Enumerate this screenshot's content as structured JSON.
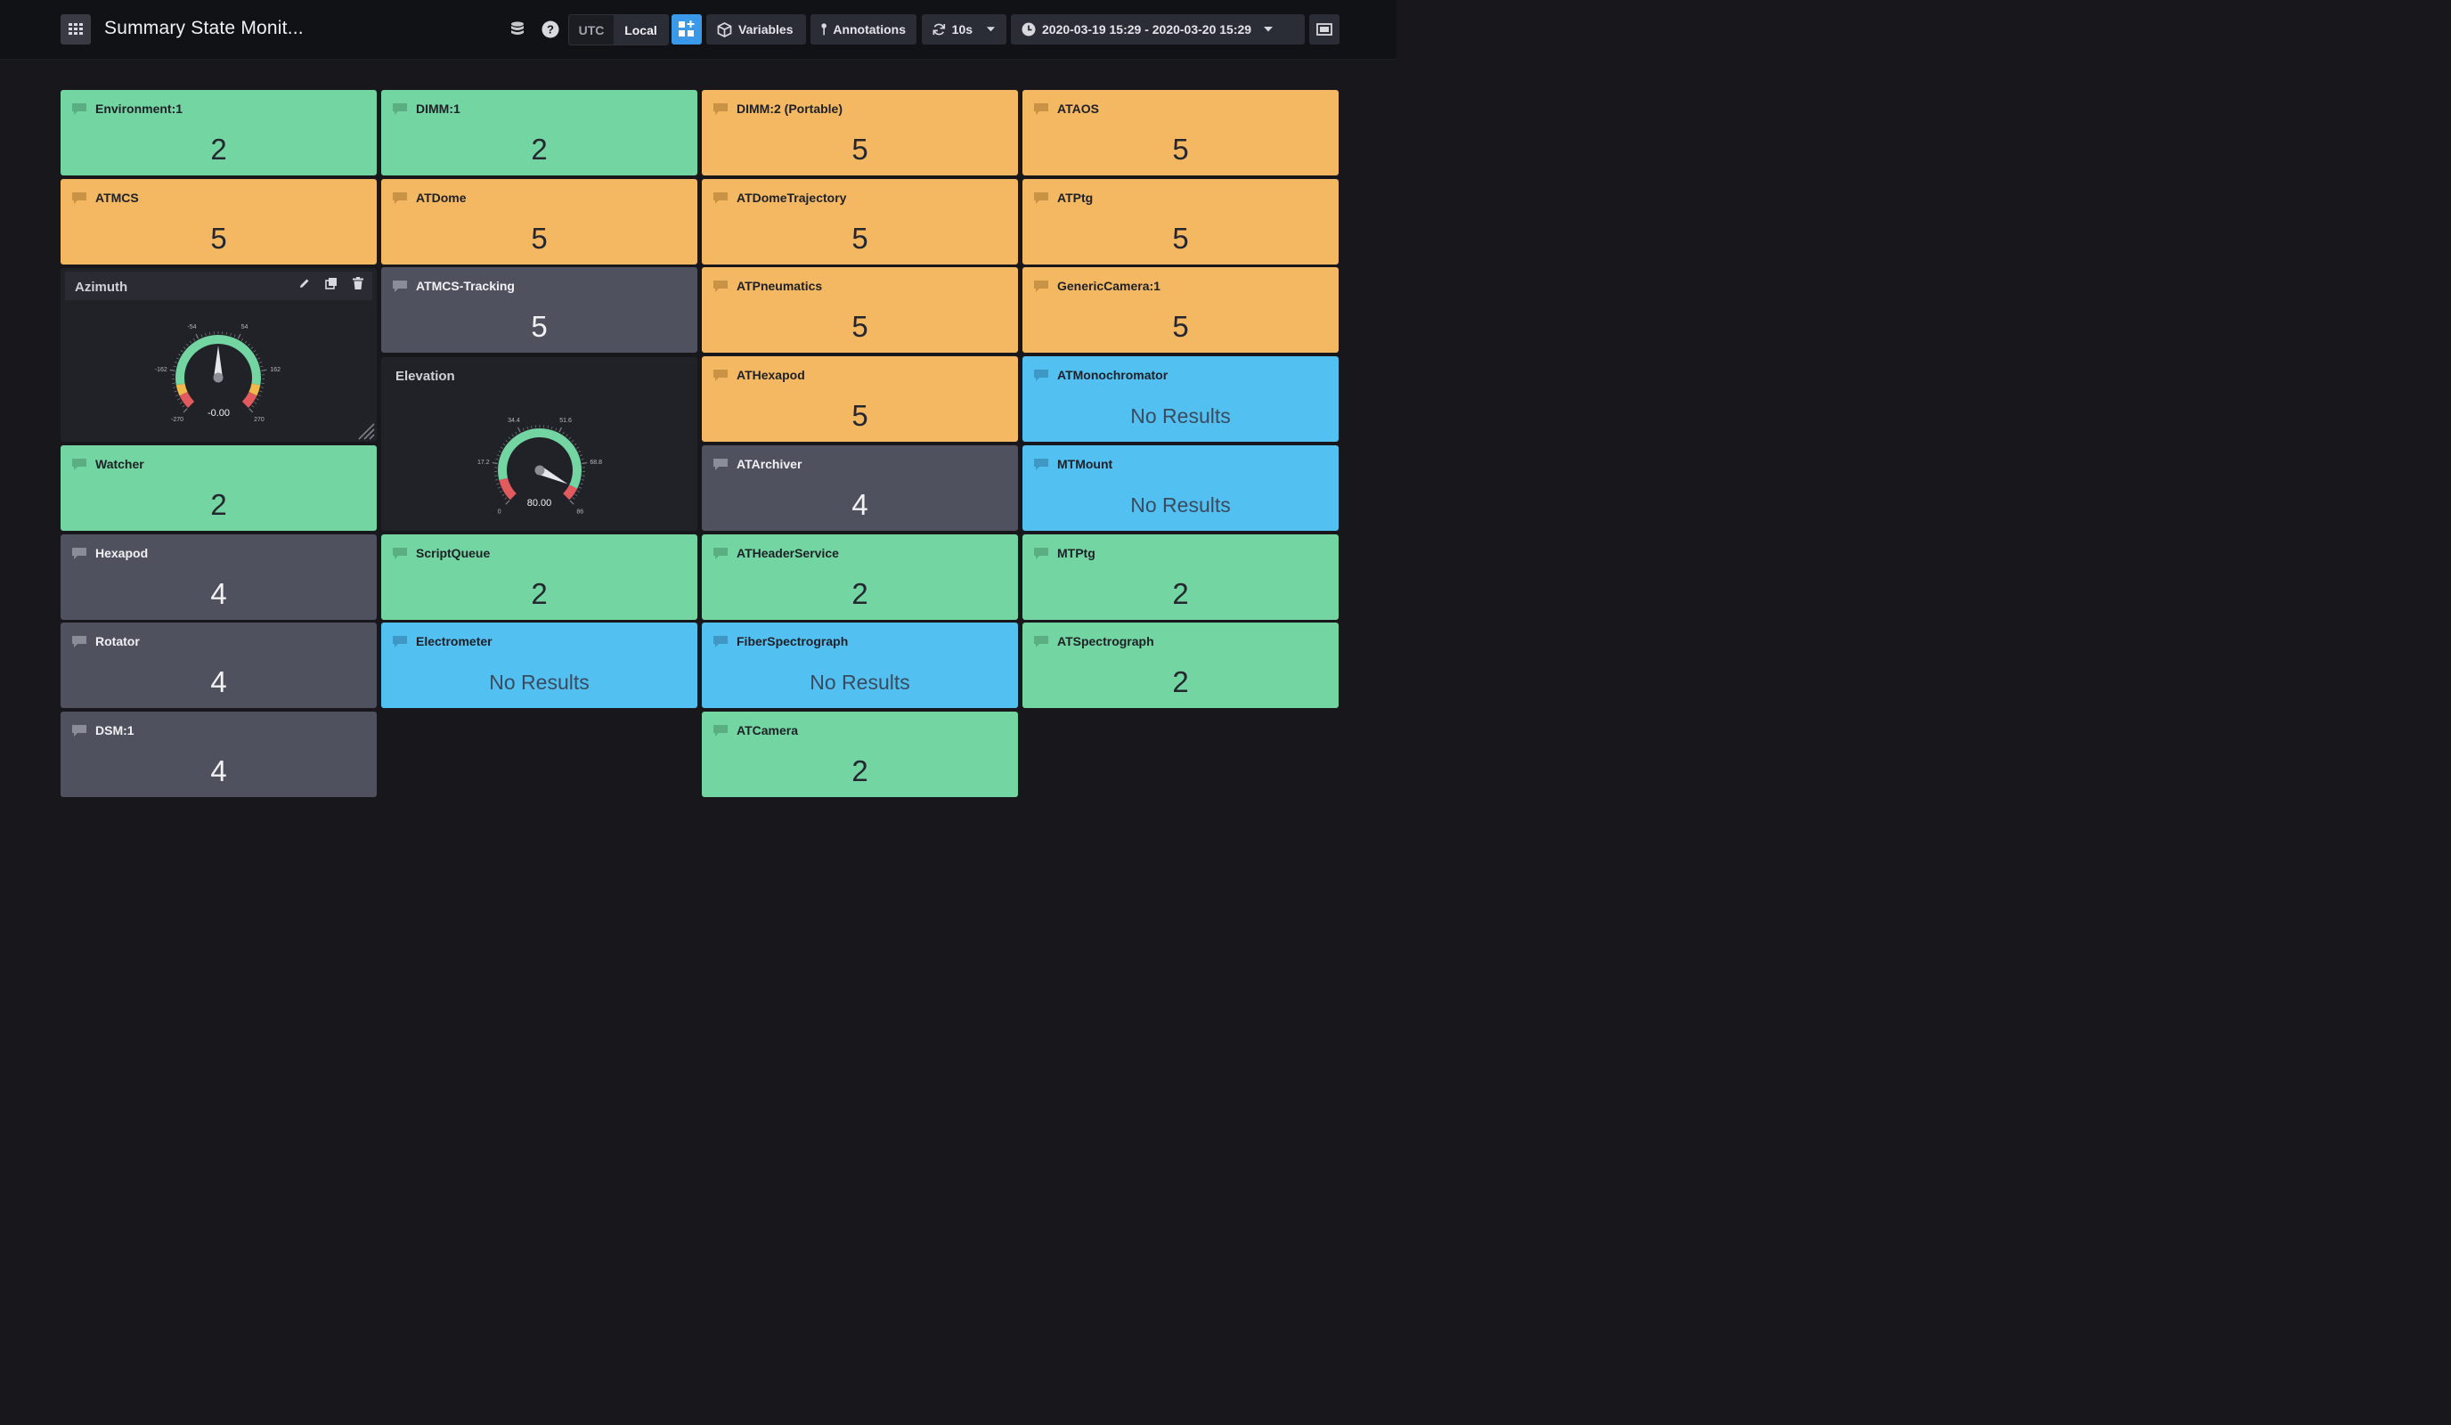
{
  "header": {
    "title": "Summary State Monit...",
    "tz_utc": "UTC",
    "tz_local": "Local",
    "variables_label": "Variables",
    "annotations_label": "Annotations",
    "refresh_label": "10s",
    "time_range": "2020-03-19 15:29 - 2020-03-20 15:29"
  },
  "colors": {
    "ok": "#73d5a1",
    "warning": "#f5b862",
    "unknown": "#4f515f",
    "no_results": "#53c0f2",
    "accent": "#3a99e8"
  },
  "panels": [
    {
      "title": "Environment:1",
      "value": "2",
      "color": "green"
    },
    {
      "title": "DIMM:1",
      "value": "2",
      "color": "green"
    },
    {
      "title": "DIMM:2 (Portable)",
      "value": "5",
      "color": "orange"
    },
    {
      "title": "ATAOS",
      "value": "5",
      "color": "orange"
    },
    {
      "title": "ATMCS",
      "value": "5",
      "color": "orange"
    },
    {
      "title": "ATDome",
      "value": "5",
      "color": "orange"
    },
    {
      "title": "ATDomeTrajectory",
      "value": "5",
      "color": "orange"
    },
    {
      "title": "ATPtg",
      "value": "5",
      "color": "orange"
    },
    {
      "title": "ATMCS-Tracking",
      "value": "5",
      "color": "gray"
    },
    {
      "title": "ATPneumatics",
      "value": "5",
      "color": "orange"
    },
    {
      "title": "GenericCamera:1",
      "value": "5",
      "color": "orange"
    },
    {
      "title": "ATHexapod",
      "value": "5",
      "color": "orange"
    },
    {
      "title": "ATMonochromator",
      "value": "No Results",
      "color": "blue"
    },
    {
      "title": "Watcher",
      "value": "2",
      "color": "green"
    },
    {
      "title": "ATArchiver",
      "value": "4",
      "color": "gray"
    },
    {
      "title": "MTMount",
      "value": "No Results",
      "color": "blue"
    },
    {
      "title": "Hexapod",
      "value": "4",
      "color": "gray"
    },
    {
      "title": "ScriptQueue",
      "value": "2",
      "color": "green"
    },
    {
      "title": "ATHeaderService",
      "value": "2",
      "color": "green"
    },
    {
      "title": "MTPtg",
      "value": "2",
      "color": "green"
    },
    {
      "title": "Rotator",
      "value": "4",
      "color": "gray"
    },
    {
      "title": "Electrometer",
      "value": "No Results",
      "color": "blue"
    },
    {
      "title": "FiberSpectrograph",
      "value": "No Results",
      "color": "blue"
    },
    {
      "title": "ATSpectrograph",
      "value": "2",
      "color": "green"
    },
    {
      "title": "DSM:1",
      "value": "4",
      "color": "gray"
    },
    {
      "title": "ATCamera",
      "value": "2",
      "color": "green"
    }
  ],
  "azimuth_gauge": {
    "title": "Azimuth",
    "value": -0.0,
    "display": "-0.00",
    "min": -270,
    "max": 270,
    "ticks": [
      "-270",
      "-162",
      "-54",
      "54",
      "162",
      "270"
    ],
    "thresholds": {
      "red_low": -230,
      "yellow_low": -200,
      "yellow_high": 200,
      "red_high": 230
    }
  },
  "elevation_gauge": {
    "title": "Elevation",
    "value": 80.0,
    "display": "80.00",
    "min": 0,
    "max": 86,
    "ticks": [
      "0",
      "17.2",
      "34.4",
      "51.6",
      "68.8",
      "86"
    ],
    "thresholds": {
      "red_low": 10,
      "red_high": 80
    }
  }
}
